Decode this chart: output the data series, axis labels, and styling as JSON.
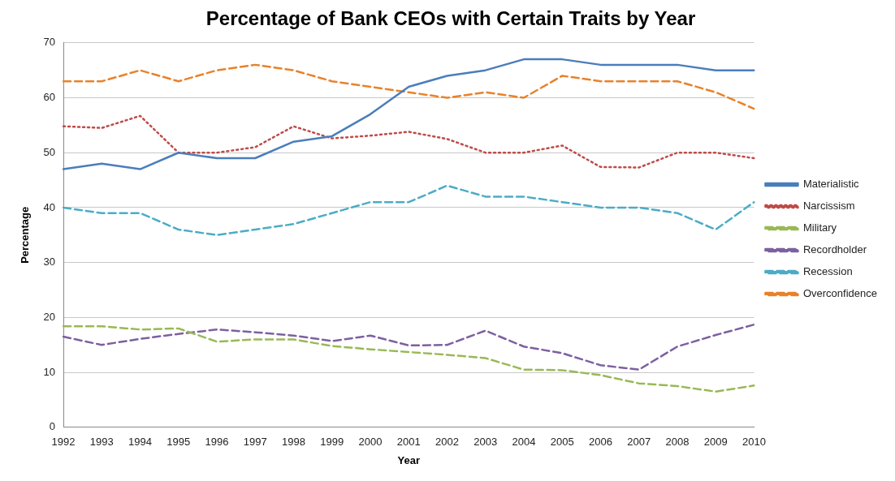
{
  "chart_data": {
    "type": "line",
    "title": "Percentage of Bank CEOs with Certain Traits by Year",
    "xlabel": "Year",
    "ylabel": "Percentage",
    "categories": [
      "1992",
      "1993",
      "1994",
      "1995",
      "1996",
      "1997",
      "1998",
      "1999",
      "2000",
      "2001",
      "2002",
      "2003",
      "2004",
      "2005",
      "2006",
      "2007",
      "2008",
      "2009",
      "2010"
    ],
    "ylim": [
      0,
      70
    ],
    "yticks": [
      0,
      10,
      20,
      30,
      40,
      50,
      60,
      70
    ],
    "grid": "y",
    "legend": "right",
    "marker": "none",
    "series": [
      {
        "name": "Materialistic",
        "color": "#4a7ebb",
        "line_style": "solid",
        "values": [
          47,
          48,
          47,
          50,
          49,
          49,
          52,
          53,
          57,
          62,
          64,
          65,
          67,
          67,
          66,
          66,
          66,
          65,
          65
        ]
      },
      {
        "name": "Narcissism",
        "color": "#be4b48",
        "line_style": "dotted",
        "values": [
          54.8,
          54.5,
          56.7,
          50,
          50,
          51,
          54.8,
          52.6,
          53.1,
          53.8,
          52.5,
          50,
          50,
          51.3,
          47.4,
          47.3,
          50,
          50,
          49
        ]
      },
      {
        "name": "Military",
        "color": "#98b954",
        "line_style": "dashed",
        "values": [
          18.4,
          18.4,
          17.8,
          18,
          15.6,
          16,
          16,
          14.8,
          14.2,
          13.7,
          13.2,
          12.6,
          10.5,
          10.4,
          9.5,
          8,
          7.5,
          6.5,
          7.6
        ]
      },
      {
        "name": "Recordholder",
        "color": "#7d60a0",
        "line_style": "dashed",
        "values": [
          16.5,
          15,
          16.1,
          17,
          17.8,
          17.3,
          16.7,
          15.7,
          16.7,
          14.9,
          15,
          17.6,
          14.7,
          13.5,
          11.3,
          10.5,
          14.7,
          16.8,
          18.7
        ]
      },
      {
        "name": "Recession",
        "color": "#4bacc6",
        "line_style": "dashed",
        "values": [
          40,
          39,
          39,
          36,
          35,
          36,
          37,
          39,
          41,
          41,
          44,
          42,
          42,
          41,
          40,
          40,
          39,
          36,
          41
        ]
      },
      {
        "name": "Overconfidence",
        "color": "#e8822a",
        "line_style": "dashed",
        "values": [
          63,
          63,
          65,
          63,
          65,
          66,
          65,
          63,
          62,
          61,
          60,
          61,
          60,
          64,
          63,
          63,
          63,
          61,
          58
        ]
      }
    ]
  }
}
